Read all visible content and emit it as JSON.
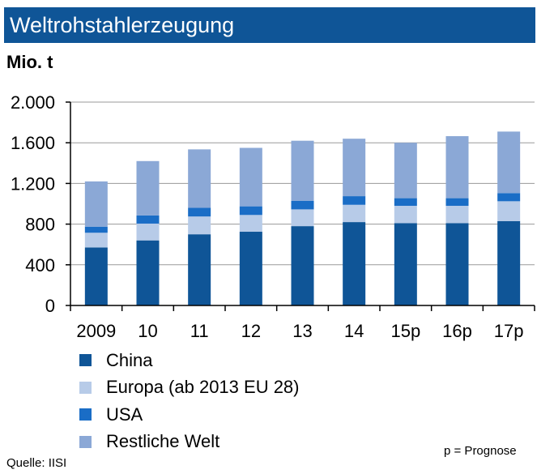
{
  "header": {
    "title": "Weltrohstahlerzeugung"
  },
  "unit_label": "Mio. t",
  "chart_data": {
    "type": "bar",
    "stacked": true,
    "title": "Weltrohstahlerzeugung",
    "ylabel": "Mio. t",
    "xlabel": "",
    "ylim": [
      0,
      2000
    ],
    "yticks": [
      0,
      400,
      800,
      1200,
      1600,
      2000
    ],
    "ytick_labels": [
      "0",
      "400",
      "800",
      "1.200",
      "1.600",
      "2.000"
    ],
    "categories": [
      "2009",
      "10",
      "11",
      "12",
      "13",
      "14",
      "15p",
      "16p",
      "17p"
    ],
    "series": [
      {
        "name": "China",
        "color": "#0f5597",
        "values": [
          570,
          640,
          700,
          725,
          780,
          820,
          810,
          810,
          830
        ]
      },
      {
        "name": "Europa (ab 2013 EU 28)",
        "color": "#b7cbe8",
        "values": [
          145,
          165,
          175,
          165,
          165,
          170,
          170,
          170,
          195
        ]
      },
      {
        "name": "USA",
        "color": "#1a6dc6",
        "values": [
          60,
          80,
          85,
          85,
          85,
          85,
          75,
          75,
          80
        ]
      },
      {
        "name": "Restliche Welt",
        "color": "#8ba8d6",
        "values": [
          445,
          535,
          575,
          575,
          590,
          565,
          545,
          610,
          605
        ]
      }
    ],
    "legend_position": "bottom-left",
    "grid": true
  },
  "footer": {
    "source": "Quelle:  IISI",
    "note": "p = Prognose"
  }
}
